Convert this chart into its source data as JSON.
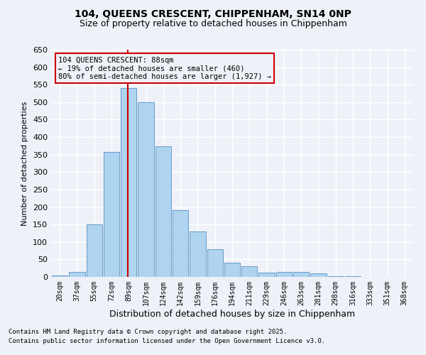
{
  "title1": "104, QUEENS CRESCENT, CHIPPENHAM, SN14 0NP",
  "title2": "Size of property relative to detached houses in Chippenham",
  "xlabel": "Distribution of detached houses by size in Chippenham",
  "ylabel": "Number of detached properties",
  "bar_labels": [
    "20sqm",
    "37sqm",
    "55sqm",
    "72sqm",
    "89sqm",
    "107sqm",
    "124sqm",
    "142sqm",
    "159sqm",
    "176sqm",
    "194sqm",
    "211sqm",
    "229sqm",
    "246sqm",
    "263sqm",
    "281sqm",
    "298sqm",
    "316sqm",
    "333sqm",
    "351sqm",
    "368sqm"
  ],
  "bar_values": [
    4,
    15,
    150,
    358,
    540,
    500,
    373,
    190,
    130,
    80,
    40,
    30,
    13,
    15,
    15,
    10,
    3,
    2,
    1,
    1,
    1
  ],
  "bar_color": "#aed4ef",
  "bar_edgecolor": "#6699cc",
  "vline_color": "#cc0000",
  "annotation_text": "104 QUEENS CRESCENT: 88sqm\n← 19% of detached houses are smaller (460)\n80% of semi-detached houses are larger (1,927) →",
  "annotation_box_edgecolor": "#cc0000",
  "ylim": [
    0,
    650
  ],
  "yticks": [
    0,
    50,
    100,
    150,
    200,
    250,
    300,
    350,
    400,
    450,
    500,
    550,
    600,
    650
  ],
  "footer1": "Contains HM Land Registry data © Crown copyright and database right 2025.",
  "footer2": "Contains public sector information licensed under the Open Government Licence v3.0.",
  "bg_color": "#eef2f8",
  "grid_color": "#ffffff"
}
